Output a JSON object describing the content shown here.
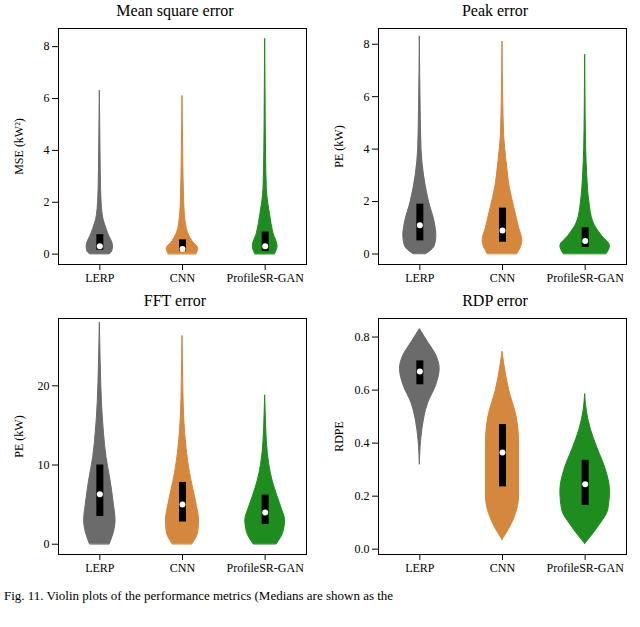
{
  "chart_data": [
    {
      "type": "violin",
      "title": "Mean square error",
      "ylabel": "MSE (kW²)",
      "categories": [
        "LERP",
        "CNN",
        "ProfileSR-GAN"
      ],
      "ylim": [
        -0.4,
        8.7
      ],
      "yticks": [
        0,
        2,
        4,
        6,
        8
      ],
      "violins": [
        {
          "name": "LERP",
          "color": "#6b6b6b",
          "y": [
            0,
            0.1,
            0.3,
            0.8,
            1.5,
            2.5,
            4,
            6.3
          ],
          "half_width": [
            0.12,
            0.15,
            0.16,
            0.1,
            0.035,
            0.015,
            0.008,
            0
          ],
          "median": 0.3,
          "q1": 0.15,
          "q3": 0.75
        },
        {
          "name": "CNN",
          "color": "#d4873d",
          "y": [
            0,
            0.2,
            0.5,
            1,
            2,
            4,
            6.1
          ],
          "half_width": [
            0.17,
            0.19,
            0.12,
            0.05,
            0.02,
            0.008,
            0
          ],
          "median": 0.2,
          "q1": 0.1,
          "q3": 0.55
        },
        {
          "name": "ProfileSR-GAN",
          "color": "#1e8c1e",
          "y": [
            0,
            0.3,
            0.8,
            1.5,
            2.5,
            4,
            6,
            8.3
          ],
          "half_width": [
            0.12,
            0.15,
            0.1,
            0.06,
            0.02,
            0.01,
            0.005,
            0
          ],
          "median": 0.3,
          "q1": 0.1,
          "q3": 0.85
        }
      ]
    },
    {
      "type": "violin",
      "title": "Peak error",
      "ylabel": "PE (kW)",
      "categories": [
        "LERP",
        "CNN",
        "ProfileSR-GAN"
      ],
      "ylim": [
        -0.4,
        8.6
      ],
      "yticks": [
        0,
        2,
        4,
        6,
        8
      ],
      "violins": [
        {
          "name": "LERP",
          "color": "#6b6b6b",
          "y": [
            0,
            0.3,
            0.7,
            1.2,
            2,
            3,
            4,
            5.5,
            8.3
          ],
          "half_width": [
            0.08,
            0.18,
            0.2,
            0.18,
            0.11,
            0.05,
            0.02,
            0.01,
            0
          ],
          "median": 1.1,
          "q1": 0.5,
          "q3": 1.9
        },
        {
          "name": "CNN",
          "color": "#d4873d",
          "y": [
            0,
            0.5,
            1,
            1.8,
            2.5,
            3.5,
            4.5,
            6,
            8.1
          ],
          "half_width": [
            0.18,
            0.24,
            0.2,
            0.14,
            0.09,
            0.05,
            0.02,
            0.008,
            0
          ],
          "median": 0.9,
          "q1": 0.45,
          "q3": 1.75
        },
        {
          "name": "ProfileSR-GAN",
          "color": "#1e8c1e",
          "y": [
            0,
            0.3,
            0.7,
            1.2,
            2,
            3,
            4,
            5.5,
            7.6
          ],
          "half_width": [
            0.26,
            0.3,
            0.2,
            0.1,
            0.05,
            0.025,
            0.012,
            0.005,
            0
          ],
          "median": 0.5,
          "q1": 0.25,
          "q3": 1.0
        }
      ]
    },
    {
      "type": "violin",
      "title": "FFT error",
      "ylabel": "PE (kW)",
      "categories": [
        "LERP",
        "CNN",
        "ProfileSR-GAN"
      ],
      "ylim": [
        -1.3,
        28.5
      ],
      "yticks": [
        0,
        10,
        20
      ],
      "violins": [
        {
          "name": "LERP",
          "color": "#6b6b6b",
          "y": [
            0,
            1.5,
            3,
            5,
            8,
            11,
            14,
            18,
            23,
            28
          ],
          "half_width": [
            0.12,
            0.17,
            0.19,
            0.17,
            0.13,
            0.08,
            0.05,
            0.025,
            0.01,
            0
          ],
          "median": 6.3,
          "q1": 3.5,
          "q3": 10
        },
        {
          "name": "CNN",
          "color": "#d4873d",
          "y": [
            0,
            1.5,
            3,
            5,
            7,
            9,
            12,
            16,
            21,
            26.3
          ],
          "half_width": [
            0.12,
            0.19,
            0.2,
            0.17,
            0.13,
            0.09,
            0.05,
            0.02,
            0.008,
            0
          ],
          "median": 5,
          "q1": 2.8,
          "q3": 7.8
        },
        {
          "name": "ProfileSR-GAN",
          "color": "#1e8c1e",
          "y": [
            0,
            1.5,
            3,
            4.5,
            6,
            8,
            10,
            13,
            16,
            18.8
          ],
          "half_width": [
            0.14,
            0.22,
            0.24,
            0.2,
            0.15,
            0.09,
            0.05,
            0.02,
            0.008,
            0
          ],
          "median": 4,
          "q1": 2.5,
          "q3": 6.2
        }
      ]
    },
    {
      "type": "violin",
      "title": "RDP error",
      "ylabel": "RDPE",
      "categories": [
        "LERP",
        "CNN",
        "ProfileSR-GAN"
      ],
      "ylim": [
        -0.02,
        0.87
      ],
      "yticks": [
        {
          "value": 0,
          "label": "0.0"
        },
        0.2,
        0.4,
        0.6,
        0.8
      ],
      "violins": [
        {
          "name": "LERP",
          "color": "#6b6b6b",
          "y": [
            0.32,
            0.45,
            0.55,
            0.62,
            0.68,
            0.73,
            0.78,
            0.83
          ],
          "half_width": [
            0,
            0.03,
            0.1,
            0.2,
            0.24,
            0.2,
            0.1,
            0
          ],
          "median": 0.67,
          "q1": 0.62,
          "q3": 0.71
        },
        {
          "name": "CNN",
          "color": "#d4873d",
          "y": [
            0.035,
            0.1,
            0.2,
            0.3,
            0.4,
            0.5,
            0.6,
            0.7,
            0.745
          ],
          "half_width": [
            0,
            0.12,
            0.2,
            0.2,
            0.2,
            0.17,
            0.08,
            0.02,
            0
          ],
          "median": 0.365,
          "q1": 0.235,
          "q3": 0.47
        },
        {
          "name": "ProfileSR-GAN",
          "color": "#1e8c1e",
          "y": [
            0.02,
            0.08,
            0.15,
            0.22,
            0.3,
            0.38,
            0.45,
            0.52,
            0.585
          ],
          "half_width": [
            0,
            0.15,
            0.28,
            0.3,
            0.25,
            0.15,
            0.07,
            0.02,
            0
          ],
          "median": 0.245,
          "q1": 0.165,
          "q3": 0.335
        }
      ]
    }
  ],
  "caption": "Fig. 11.  Violin plots of the performance metrics (Medians are shown as the"
}
